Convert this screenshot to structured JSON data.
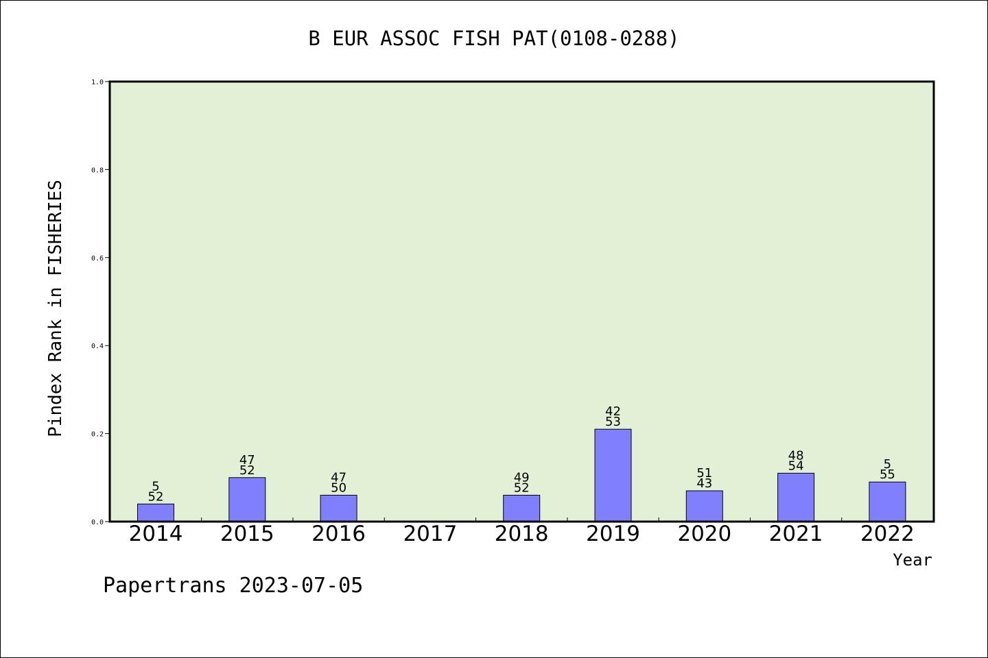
{
  "chart_data": {
    "type": "bar",
    "title": "B EUR ASSOC FISH PAT(0108-0288)",
    "xlabel": "Year",
    "ylabel": "Pindex Rank in FISHERIES",
    "ylim": [
      0,
      1.0
    ],
    "yticks": [
      "0.0",
      "0.2",
      "0.4",
      "0.6",
      "0.8",
      "1.0"
    ],
    "categories": [
      "2014",
      "2015",
      "2016",
      "2017",
      "2018",
      "2019",
      "2020",
      "2021",
      "2022"
    ],
    "values": [
      0.04,
      0.1,
      0.06,
      0,
      0.06,
      0.21,
      0.07,
      0.11,
      0.09
    ],
    "labels_top": [
      "5",
      "47",
      "47",
      "",
      "49",
      "42",
      "51",
      "48",
      "5"
    ],
    "labels_bottom": [
      "52",
      "52",
      "50",
      "",
      "52",
      "53",
      "43",
      "54",
      "55"
    ],
    "grid": false,
    "colors": {
      "plot_background": "#e2f0d6",
      "bar_fill": "#8080ff",
      "bar_stroke": "#000000"
    }
  },
  "footer": "Papertrans 2023-07-05"
}
